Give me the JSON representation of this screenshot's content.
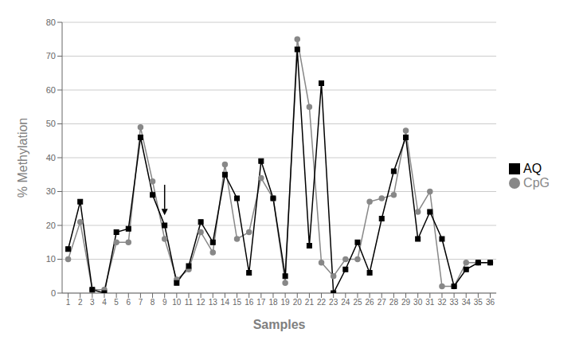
{
  "chart_data": {
    "type": "line",
    "x": [
      1,
      2,
      3,
      4,
      5,
      6,
      7,
      8,
      9,
      10,
      11,
      12,
      13,
      14,
      15,
      16,
      17,
      18,
      19,
      20,
      21,
      22,
      23,
      24,
      25,
      26,
      27,
      28,
      29,
      30,
      31,
      32,
      33,
      34,
      35,
      36
    ],
    "series": [
      {
        "name": "CpG",
        "color": "#888888",
        "marker": "circle",
        "values": [
          10,
          21,
          1,
          1,
          15,
          15,
          49,
          33,
          16,
          4,
          7,
          18,
          12,
          38,
          16,
          18,
          34,
          28,
          3,
          75,
          55,
          9,
          5,
          10,
          10,
          27,
          28,
          29,
          48,
          24,
          30,
          2,
          2,
          9,
          9,
          9
        ]
      },
      {
        "name": "AQ",
        "color": "#000000",
        "marker": "square",
        "values": [
          13,
          27,
          1,
          0,
          18,
          19,
          46,
          29,
          20,
          3,
          8,
          21,
          15,
          35,
          28,
          6,
          39,
          28,
          5,
          72,
          14,
          62,
          0,
          7,
          15,
          6,
          22,
          36,
          46,
          16,
          24,
          16,
          2,
          7,
          9,
          9
        ]
      }
    ],
    "x_label": "Samples",
    "y_label": "% Methylation",
    "xlim": [
      0.5,
      36.5
    ],
    "xticks": [
      1,
      2,
      3,
      4,
      5,
      6,
      7,
      8,
      9,
      10,
      11,
      12,
      13,
      14,
      15,
      16,
      17,
      18,
      19,
      20,
      21,
      22,
      23,
      24,
      25,
      26,
      27,
      28,
      29,
      30,
      31,
      32,
      33,
      34,
      35,
      36
    ],
    "ylim": [
      0,
      80
    ],
    "yticks": [
      0,
      10,
      20,
      30,
      40,
      50,
      60,
      70,
      80
    ],
    "grid": "y",
    "legend": "right",
    "annotations": [
      {
        "arrow": true,
        "x": 9,
        "y_from": 32,
        "y_to": 23
      }
    ]
  }
}
